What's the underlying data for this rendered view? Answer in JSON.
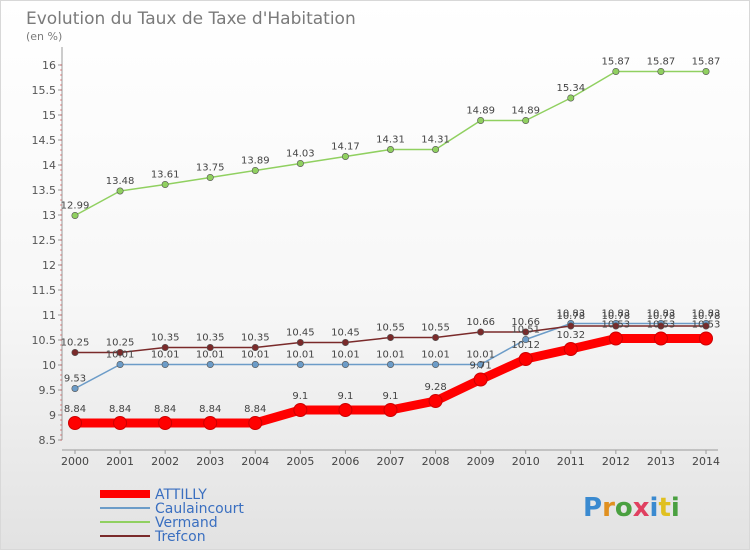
{
  "chart_data": {
    "type": "line",
    "title": "Evolution du Taux de Taxe d'Habitation",
    "subtitle": "(en %)",
    "x": [
      "2000",
      "2001",
      "2002",
      "2003",
      "2004",
      "2005",
      "2006",
      "2007",
      "2008",
      "2009",
      "2010",
      "2011",
      "2012",
      "2013",
      "2014"
    ],
    "ylim": [
      8.5,
      16.2
    ],
    "yticks": [
      8.5,
      9,
      9.5,
      10,
      10.5,
      11,
      11.5,
      12,
      12.5,
      13,
      13.5,
      14,
      14.5,
      15,
      15.5,
      16
    ],
    "grid": false,
    "legend_position": "bottom-left",
    "series": [
      {
        "name": "ATTILLY",
        "color": "#ff0000",
        "values": [
          8.84,
          8.84,
          8.84,
          8.84,
          8.84,
          9.1,
          9.1,
          9.1,
          9.28,
          9.71,
          10.12,
          10.32,
          10.53,
          10.53,
          10.53
        ],
        "labels": [
          "8.84",
          "8.84",
          "8.84",
          "8.84",
          "8.84",
          "9.1",
          "9.1",
          "9.1",
          "9.28",
          "9.71",
          "10.12",
          "10.32",
          "10.53",
          "10.53",
          "10.53"
        ]
      },
      {
        "name": "Caulaincourt",
        "color": "#6c9cc8",
        "values": [
          9.53,
          10.01,
          10.01,
          10.01,
          10.01,
          10.01,
          10.01,
          10.01,
          10.01,
          10.01,
          10.51,
          10.83,
          10.83,
          10.83,
          10.83
        ],
        "labels": [
          "9.53",
          "10.01",
          "10.01",
          "10.01",
          "10.01",
          "10.01",
          "10.01",
          "10.01",
          "10.01",
          "10.01",
          "10.51",
          "10.83",
          "10.83",
          "10.83",
          "10.83"
        ]
      },
      {
        "name": "Vermand",
        "color": "#90d060",
        "values": [
          12.99,
          13.48,
          13.61,
          13.75,
          13.89,
          14.03,
          14.17,
          14.31,
          14.31,
          14.89,
          14.89,
          15.34,
          15.87,
          15.87,
          15.87
        ],
        "labels": [
          "12.99",
          "13.48",
          "13.61",
          "13.75",
          "13.89",
          "14.03",
          "14.17",
          "14.31",
          "14.31",
          "14.89",
          "14.89",
          "15.34",
          "15.87",
          "15.87",
          "15.87"
        ]
      },
      {
        "name": "Trefcon",
        "color": "#7a2a2a",
        "values": [
          10.25,
          10.25,
          10.35,
          10.35,
          10.35,
          10.45,
          10.45,
          10.55,
          10.55,
          10.66,
          10.66,
          10.78,
          10.78,
          10.78,
          10.78
        ],
        "labels": [
          "10.25",
          "10.25",
          "10.35",
          "10.35",
          "10.35",
          "10.45",
          "10.45",
          "10.55",
          "10.55",
          "10.66",
          "10.66",
          "10.78",
          "10.78",
          "10.78",
          "10.78"
        ]
      }
    ]
  },
  "brand": {
    "logo_text": "Proxiti"
  }
}
